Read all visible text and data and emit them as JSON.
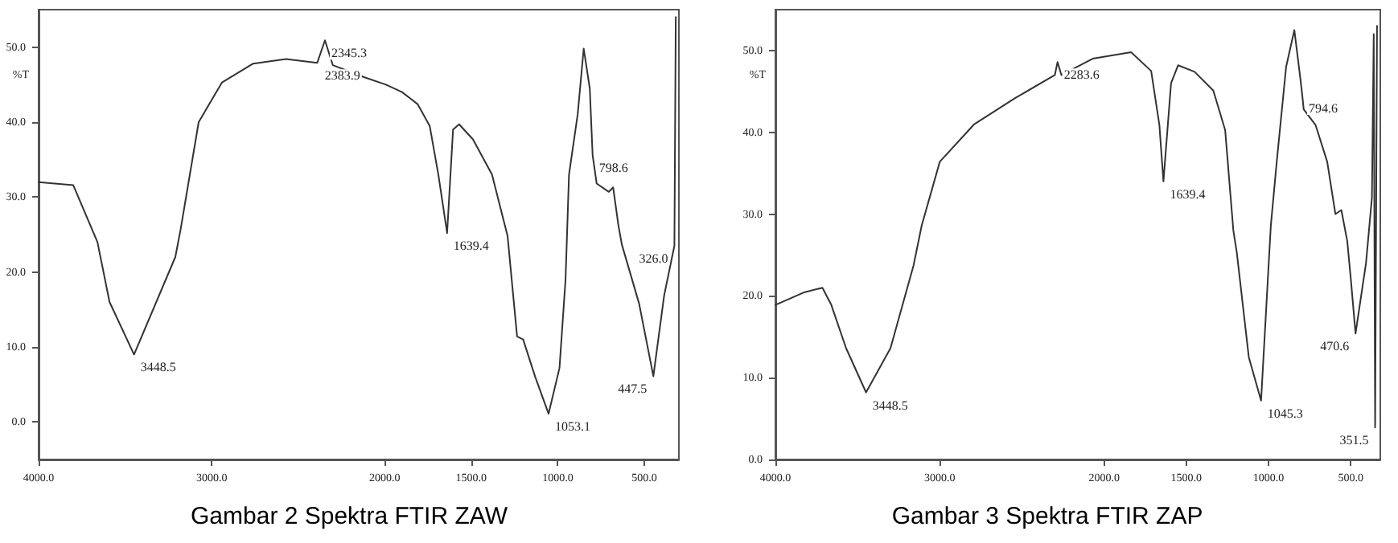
{
  "chart_data": [
    {
      "type": "line",
      "title": "Gambar 2 Spektra FTIR ZAW",
      "ylabel": "%T",
      "grid": false,
      "marker": "none",
      "line_style": "solid",
      "xlim": [
        4000,
        300
      ],
      "ylim": [
        -5,
        55
      ],
      "xticks": [
        {
          "value": 4000,
          "label": "4000.0"
        },
        {
          "value": 3000,
          "label": "3000.0"
        },
        {
          "value": 2000,
          "label": "2000.0"
        },
        {
          "value": 1500,
          "label": "1500.0"
        },
        {
          "value": 1000,
          "label": "1000.0"
        },
        {
          "value": 500,
          "label": "500.0"
        }
      ],
      "yticks": [
        {
          "value": 0,
          "label": "0.0"
        },
        {
          "value": 10,
          "label": "10.0"
        },
        {
          "value": 20,
          "label": "20.0"
        },
        {
          "value": 30,
          "label": "30.0"
        },
        {
          "value": 40,
          "label": "40.0"
        },
        {
          "value": 50,
          "label": "50.0"
        }
      ],
      "series": [
        {
          "color": "#333333",
          "x": [
            4000,
            3800,
            3660,
            3590,
            3448.5,
            3210,
            3180,
            3075,
            2940,
            2760,
            2570,
            2390,
            2345.3,
            2300,
            2120,
            1993,
            1900,
            1810,
            1740,
            1690,
            1639.4,
            1605,
            1570,
            1490,
            1380,
            1290,
            1235,
            1200,
            1130,
            1053.1,
            990,
            955,
            935,
            885,
            850,
            815,
            798.6,
            775,
            705,
            680,
            650,
            630,
            530,
            447.5,
            385,
            326,
            318
          ],
          "values": [
            32.0,
            31.6,
            24,
            16,
            9.0,
            22,
            25.6,
            40,
            45.3,
            47.8,
            48.4,
            47.9,
            50.9,
            47.6,
            46,
            45,
            44,
            42.4,
            39.5,
            33,
            25.2,
            39,
            39.7,
            37.7,
            33,
            24.8,
            11.4,
            11,
            6,
            1.1,
            7.2,
            19,
            33,
            41,
            49.8,
            44.5,
            35.6,
            31.8,
            30.7,
            31.3,
            26.3,
            23.7,
            15.8,
            6.1,
            16.9,
            23.5,
            54
          ]
        }
      ],
      "annotations": [
        {
          "text": "3448.5",
          "x": 3448.5,
          "y": 9.0
        },
        {
          "text": "2345.3",
          "x": 2345.3,
          "y": 50.9
        },
        {
          "text": "2383.9",
          "x": 2383.9,
          "y": 47.9
        },
        {
          "text": "1639.4",
          "x": 1639.4,
          "y": 25.2
        },
        {
          "text": "1053.1",
          "x": 1053.1,
          "y": 1.1
        },
        {
          "text": "798.6",
          "x": 798.6,
          "y": 35.6
        },
        {
          "text": "447.5",
          "x": 447.5,
          "y": 6.1
        },
        {
          "text": "326.0",
          "x": 326,
          "y": 23.5
        }
      ]
    },
    {
      "type": "line",
      "title": "Gambar 3 Spektra FTIR ZAP",
      "ylabel": "%T",
      "grid": false,
      "marker": "none",
      "line_style": "solid",
      "xlim": [
        4000,
        320
      ],
      "ylim": [
        0,
        55
      ],
      "xticks": [
        {
          "value": 4000,
          "label": "4000.0"
        },
        {
          "value": 3000,
          "label": "3000.0"
        },
        {
          "value": 2000,
          "label": "2000.0"
        },
        {
          "value": 1500,
          "label": "1500.0"
        },
        {
          "value": 1000,
          "label": "1000.0"
        },
        {
          "value": 500,
          "label": "500.0"
        }
      ],
      "yticks": [
        {
          "value": 0,
          "label": "0.0"
        },
        {
          "value": 10,
          "label": "10.0"
        },
        {
          "value": 20,
          "label": "20.0"
        },
        {
          "value": 30,
          "label": "30.0"
        },
        {
          "value": 40,
          "label": "40.0"
        },
        {
          "value": 50,
          "label": "50.0"
        }
      ],
      "series": [
        {
          "color": "#333333",
          "x": [
            4000,
            3830,
            3714,
            3660,
            3570,
            3448.5,
            3300,
            3160,
            3110,
            3000,
            2790,
            2540,
            2300,
            2283.6,
            2260,
            2070,
            1836,
            1714,
            1664,
            1639.4,
            1593,
            1550,
            1450,
            1336,
            1264,
            1214,
            1193,
            1120,
            1045.3,
            986,
            950,
            893,
            843,
            807,
            794.6,
            786,
            714,
            643,
            593,
            557,
            521,
            500,
            470.6,
            407,
            371,
            360,
            351.5,
            340
          ],
          "values": [
            18.9,
            20.4,
            21.0,
            18.9,
            13.6,
            8.2,
            13.6,
            23.7,
            28.6,
            36.4,
            41,
            44.2,
            47,
            48.6,
            47,
            49,
            49.8,
            47.5,
            40.9,
            34,
            46,
            48.2,
            47.4,
            45.1,
            40.3,
            28,
            25.3,
            12.5,
            7.2,
            28.6,
            36.4,
            48,
            52.5,
            46.7,
            44.5,
            42.8,
            40.9,
            36.4,
            30,
            30.5,
            26.7,
            22.2,
            15.4,
            24,
            32,
            52,
            3.9,
            53
          ]
        }
      ],
      "annotations": [
        {
          "text": "3448.5",
          "x": 3448.5,
          "y": 8.2
        },
        {
          "text": "2283.6",
          "x": 2283.6,
          "y": 48.6
        },
        {
          "text": "1639.4",
          "x": 1639.4,
          "y": 34
        },
        {
          "text": "1045.3",
          "x": 1045.3,
          "y": 7.2
        },
        {
          "text": "794.6",
          "x": 794.6,
          "y": 44.5
        },
        {
          "text": "470.6",
          "x": 470.6,
          "y": 15.4
        },
        {
          "text": "351.5",
          "x": 351.5,
          "y": 3.9
        }
      ]
    }
  ]
}
